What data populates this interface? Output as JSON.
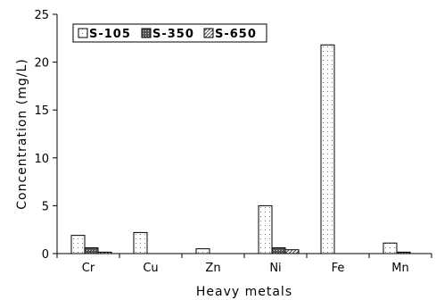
{
  "chart_data": {
    "type": "bar",
    "xlabel": "Heavy metals",
    "ylabel": "Concentration (mg/L)",
    "ylim": [
      0,
      25
    ],
    "yticks": [
      "0",
      "5",
      "10",
      "15",
      "20",
      "25"
    ],
    "categories": [
      "Cr",
      "Cu",
      "Zn",
      "Ni",
      "Fe",
      "Mn"
    ],
    "series": [
      {
        "name": "S-105",
        "values": [
          1.9,
          2.2,
          0.5,
          5.0,
          21.8,
          1.1
        ]
      },
      {
        "name": "S-350",
        "values": [
          0.6,
          0.0,
          0.0,
          0.6,
          0.0,
          0.15
        ]
      },
      {
        "name": "S-650",
        "values": [
          0.15,
          0.0,
          0.0,
          0.4,
          0.0,
          0.0
        ]
      }
    ],
    "legend_position": "top-left",
    "grid": false
  }
}
